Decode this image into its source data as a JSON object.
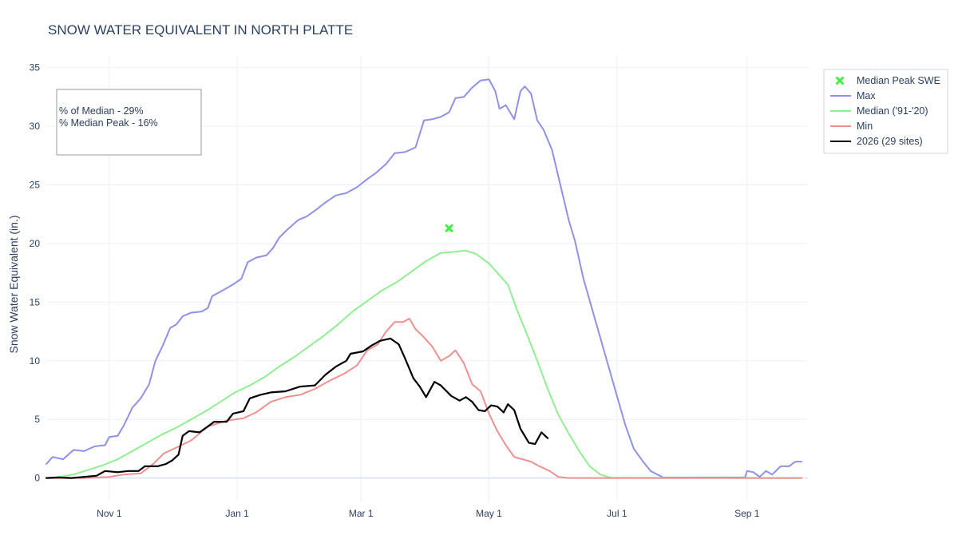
{
  "chart_data": {
    "type": "line",
    "title": "SNOW WATER EQUIVALENT IN NORTH PLATTE",
    "ylabel": "Snow Water Equivalent (in.)",
    "xlabel": "",
    "ylim": [
      -2,
      36
    ],
    "xlim": [
      "2025-10-02",
      "2026-09-30"
    ],
    "y_ticks": [
      0,
      5,
      10,
      15,
      20,
      25,
      30,
      35
    ],
    "x_ticks": [
      {
        "date": "2025-11-01",
        "label": "Nov 1"
      },
      {
        "date": "2026-01-01",
        "label": "Jan 1"
      },
      {
        "date": "2026-03-01",
        "label": "Mar 1"
      },
      {
        "date": "2026-05-01",
        "label": "May 1"
      },
      {
        "date": "2026-07-01",
        "label": "Jul 1"
      },
      {
        "date": "2026-09-01",
        "label": "Sep 1"
      }
    ],
    "grid": true,
    "legend_position": "top-right",
    "annotation": [
      "% of Median - 29%",
      "% Median Peak - 16%"
    ],
    "series": [
      {
        "name": "Max",
        "color": "#9090e8",
        "points": [
          [
            "2025-10-02",
            1.2
          ],
          [
            "2025-10-05",
            1.8
          ],
          [
            "2025-10-10",
            1.6
          ],
          [
            "2025-10-15",
            2.4
          ],
          [
            "2025-10-20",
            2.3
          ],
          [
            "2025-10-25",
            2.7
          ],
          [
            "2025-10-30",
            2.8
          ],
          [
            "2025-11-01",
            3.5
          ],
          [
            "2025-11-05",
            3.6
          ],
          [
            "2025-11-08",
            4.5
          ],
          [
            "2025-11-12",
            6.0
          ],
          [
            "2025-11-16",
            6.8
          ],
          [
            "2025-11-20",
            8.0
          ],
          [
            "2025-11-23",
            10.0
          ],
          [
            "2025-11-27",
            11.5
          ],
          [
            "2025-11-30",
            12.8
          ],
          [
            "2025-12-03",
            13.1
          ],
          [
            "2025-12-06",
            13.8
          ],
          [
            "2025-12-10",
            14.1
          ],
          [
            "2025-12-15",
            14.2
          ],
          [
            "2025-12-18",
            14.5
          ],
          [
            "2025-12-20",
            15.5
          ],
          [
            "2025-12-25",
            16.0
          ],
          [
            "2025-12-30",
            16.5
          ],
          [
            "2026-01-03",
            17.0
          ],
          [
            "2026-01-06",
            18.4
          ],
          [
            "2026-01-10",
            18.8
          ],
          [
            "2026-01-15",
            19.0
          ],
          [
            "2026-01-18",
            19.6
          ],
          [
            "2026-01-21",
            20.5
          ],
          [
            "2026-01-25",
            21.2
          ],
          [
            "2026-01-30",
            22.0
          ],
          [
            "2026-02-03",
            22.3
          ],
          [
            "2026-02-07",
            22.8
          ],
          [
            "2026-02-12",
            23.5
          ],
          [
            "2026-02-17",
            24.1
          ],
          [
            "2026-02-22",
            24.3
          ],
          [
            "2026-02-27",
            24.8
          ],
          [
            "2026-03-04",
            25.5
          ],
          [
            "2026-03-08",
            26.0
          ],
          [
            "2026-03-13",
            26.8
          ],
          [
            "2026-03-17",
            27.7
          ],
          [
            "2026-03-22",
            27.8
          ],
          [
            "2026-03-27",
            28.2
          ],
          [
            "2026-03-31",
            30.5
          ],
          [
            "2026-04-04",
            30.6
          ],
          [
            "2026-04-08",
            30.8
          ],
          [
            "2026-04-12",
            31.2
          ],
          [
            "2026-04-15",
            32.4
          ],
          [
            "2026-04-19",
            32.5
          ],
          [
            "2026-04-23",
            33.3
          ],
          [
            "2026-04-27",
            33.9
          ],
          [
            "2026-05-01",
            34.0
          ],
          [
            "2026-05-04",
            33.0
          ],
          [
            "2026-05-06",
            31.5
          ],
          [
            "2026-05-09",
            31.8
          ],
          [
            "2026-05-13",
            30.6
          ],
          [
            "2026-05-16",
            33.0
          ],
          [
            "2026-05-18",
            33.4
          ],
          [
            "2026-05-21",
            32.8
          ],
          [
            "2026-05-24",
            30.5
          ],
          [
            "2026-05-27",
            29.7
          ],
          [
            "2026-05-31",
            28.0
          ],
          [
            "2026-06-04",
            25.0
          ],
          [
            "2026-06-08",
            22.0
          ],
          [
            "2026-06-11",
            20.2
          ],
          [
            "2026-06-15",
            17.0
          ],
          [
            "2026-06-19",
            14.5
          ],
          [
            "2026-06-23",
            12.0
          ],
          [
            "2026-06-27",
            9.5
          ],
          [
            "2026-07-01",
            7.0
          ],
          [
            "2026-07-05",
            4.5
          ],
          [
            "2026-07-09",
            2.5
          ],
          [
            "2026-07-13",
            1.5
          ],
          [
            "2026-07-17",
            0.6
          ],
          [
            "2026-07-23",
            0.05
          ],
          [
            "2026-08-31",
            0.05
          ],
          [
            "2026-09-01",
            0.6
          ],
          [
            "2026-09-04",
            0.5
          ],
          [
            "2026-09-07",
            0.1
          ],
          [
            "2026-09-10",
            0.6
          ],
          [
            "2026-09-13",
            0.3
          ],
          [
            "2026-09-17",
            1.0
          ],
          [
            "2026-09-21",
            1.0
          ],
          [
            "2026-09-24",
            1.4
          ],
          [
            "2026-09-27",
            1.4
          ]
        ]
      },
      {
        "name": "Median ('91-'20)",
        "color": "#90ee90",
        "points": [
          [
            "2025-10-02",
            0.0
          ],
          [
            "2025-10-08",
            0.1
          ],
          [
            "2025-10-15",
            0.3
          ],
          [
            "2025-10-22",
            0.7
          ],
          [
            "2025-10-29",
            1.1
          ],
          [
            "2025-11-05",
            1.6
          ],
          [
            "2025-11-12",
            2.3
          ],
          [
            "2025-11-19",
            3.0
          ],
          [
            "2025-11-26",
            3.7
          ],
          [
            "2025-12-03",
            4.3
          ],
          [
            "2025-12-10",
            5.0
          ],
          [
            "2025-12-17",
            5.7
          ],
          [
            "2025-12-24",
            6.5
          ],
          [
            "2025-12-31",
            7.3
          ],
          [
            "2026-01-07",
            7.9
          ],
          [
            "2026-01-14",
            8.6
          ],
          [
            "2026-01-21",
            9.5
          ],
          [
            "2026-01-28",
            10.3
          ],
          [
            "2026-02-04",
            11.2
          ],
          [
            "2026-02-11",
            12.1
          ],
          [
            "2026-02-18",
            13.1
          ],
          [
            "2026-02-25",
            14.2
          ],
          [
            "2026-03-04",
            15.1
          ],
          [
            "2026-03-11",
            16.0
          ],
          [
            "2026-03-18",
            16.7
          ],
          [
            "2026-03-25",
            17.6
          ],
          [
            "2026-04-01",
            18.5
          ],
          [
            "2026-04-08",
            19.2
          ],
          [
            "2026-04-15",
            19.3
          ],
          [
            "2026-04-20",
            19.4
          ],
          [
            "2026-04-25",
            19.1
          ],
          [
            "2026-05-01",
            18.3
          ],
          [
            "2026-05-05",
            17.5
          ],
          [
            "2026-05-10",
            16.5
          ],
          [
            "2026-05-14",
            14.5
          ],
          [
            "2026-05-19",
            12.3
          ],
          [
            "2026-05-24",
            10.0
          ],
          [
            "2026-05-29",
            7.6
          ],
          [
            "2026-06-03",
            5.4
          ],
          [
            "2026-06-08",
            3.8
          ],
          [
            "2026-06-13",
            2.3
          ],
          [
            "2026-06-18",
            1.0
          ],
          [
            "2026-06-23",
            0.3
          ],
          [
            "2026-06-28",
            0.02
          ],
          [
            "2026-09-27",
            0.0
          ]
        ]
      },
      {
        "name": "Min",
        "color": "#ee9090",
        "points": [
          [
            "2025-10-02",
            0.0
          ],
          [
            "2025-10-20",
            0.0
          ],
          [
            "2025-11-01",
            0.1
          ],
          [
            "2025-11-08",
            0.3
          ],
          [
            "2025-11-16",
            0.4
          ],
          [
            "2025-11-22",
            1.2
          ],
          [
            "2025-11-27",
            2.1
          ],
          [
            "2025-12-03",
            2.6
          ],
          [
            "2025-12-10",
            3.2
          ],
          [
            "2025-12-18",
            4.4
          ],
          [
            "2025-12-27",
            4.9
          ],
          [
            "2026-01-04",
            5.1
          ],
          [
            "2026-01-10",
            5.6
          ],
          [
            "2026-01-17",
            6.5
          ],
          [
            "2026-01-24",
            6.9
          ],
          [
            "2026-01-31",
            7.1
          ],
          [
            "2026-02-07",
            7.6
          ],
          [
            "2026-02-14",
            8.3
          ],
          [
            "2026-02-21",
            8.9
          ],
          [
            "2026-02-27",
            9.6
          ],
          [
            "2026-03-04",
            10.9
          ],
          [
            "2026-03-09",
            11.4
          ],
          [
            "2026-03-13",
            12.5
          ],
          [
            "2026-03-17",
            13.3
          ],
          [
            "2026-03-21",
            13.3
          ],
          [
            "2026-03-24",
            13.6
          ],
          [
            "2026-03-27",
            12.7
          ],
          [
            "2026-03-31",
            12.0
          ],
          [
            "2026-04-04",
            11.2
          ],
          [
            "2026-04-08",
            10.0
          ],
          [
            "2026-04-12",
            10.4
          ],
          [
            "2026-04-15",
            10.9
          ],
          [
            "2026-04-19",
            9.8
          ],
          [
            "2026-04-23",
            8.0
          ],
          [
            "2026-04-27",
            7.4
          ],
          [
            "2026-05-01",
            5.5
          ],
          [
            "2026-05-05",
            4.0
          ],
          [
            "2026-05-09",
            2.8
          ],
          [
            "2026-05-13",
            1.8
          ],
          [
            "2026-05-17",
            1.6
          ],
          [
            "2026-05-21",
            1.4
          ],
          [
            "2026-05-25",
            1.0
          ],
          [
            "2026-05-30",
            0.6
          ],
          [
            "2026-06-03",
            0.1
          ],
          [
            "2026-06-08",
            0.0
          ],
          [
            "2026-09-27",
            0.0
          ]
        ]
      },
      {
        "name": "2026 (29 sites)",
        "color": "#000000",
        "points": [
          [
            "2025-10-02",
            0.0
          ],
          [
            "2025-10-08",
            0.05
          ],
          [
            "2025-10-14",
            0.0
          ],
          [
            "2025-10-20",
            0.1
          ],
          [
            "2025-10-26",
            0.2
          ],
          [
            "2025-10-30",
            0.6
          ],
          [
            "2025-11-05",
            0.5
          ],
          [
            "2025-11-10",
            0.6
          ],
          [
            "2025-11-15",
            0.6
          ],
          [
            "2025-11-18",
            1.0
          ],
          [
            "2025-11-24",
            1.0
          ],
          [
            "2025-11-28",
            1.2
          ],
          [
            "2025-12-01",
            1.5
          ],
          [
            "2025-12-04",
            2.0
          ],
          [
            "2025-12-06",
            3.6
          ],
          [
            "2025-12-09",
            4.0
          ],
          [
            "2025-12-14",
            3.9
          ],
          [
            "2025-12-18",
            4.4
          ],
          [
            "2025-12-21",
            4.8
          ],
          [
            "2025-12-27",
            4.8
          ],
          [
            "2025-12-30",
            5.5
          ],
          [
            "2026-01-04",
            5.7
          ],
          [
            "2026-01-07",
            6.8
          ],
          [
            "2026-01-12",
            7.1
          ],
          [
            "2026-01-17",
            7.3
          ],
          [
            "2026-01-24",
            7.4
          ],
          [
            "2026-01-31",
            7.8
          ],
          [
            "2026-02-07",
            7.9
          ],
          [
            "2026-02-12",
            8.8
          ],
          [
            "2026-02-17",
            9.5
          ],
          [
            "2026-02-22",
            10.0
          ],
          [
            "2026-02-24",
            10.6
          ],
          [
            "2026-03-02",
            10.8
          ],
          [
            "2026-03-06",
            11.3
          ],
          [
            "2026-03-10",
            11.7
          ],
          [
            "2026-03-15",
            11.9
          ],
          [
            "2026-03-19",
            11.4
          ],
          [
            "2026-03-22",
            10.2
          ],
          [
            "2026-03-26",
            8.5
          ],
          [
            "2026-03-29",
            7.8
          ],
          [
            "2026-04-01",
            6.9
          ],
          [
            "2026-04-05",
            8.2
          ],
          [
            "2026-04-08",
            7.9
          ],
          [
            "2026-04-13",
            7.0
          ],
          [
            "2026-04-17",
            6.6
          ],
          [
            "2026-04-20",
            6.9
          ],
          [
            "2026-04-23",
            6.5
          ],
          [
            "2026-04-26",
            5.8
          ],
          [
            "2026-04-29",
            5.7
          ],
          [
            "2026-05-02",
            6.2
          ],
          [
            "2026-05-05",
            6.1
          ],
          [
            "2026-05-08",
            5.6
          ],
          [
            "2026-05-10",
            6.3
          ],
          [
            "2026-05-13",
            5.8
          ],
          [
            "2026-05-16",
            4.2
          ],
          [
            "2026-05-20",
            3.0
          ],
          [
            "2026-05-23",
            2.9
          ],
          [
            "2026-05-26",
            3.9
          ],
          [
            "2026-05-29",
            3.4
          ]
        ]
      }
    ],
    "markers": [
      {
        "name": "Median Peak SWE",
        "color": "#44ee44",
        "x": "2026-04-12",
        "y": 21.3,
        "symbol": "x"
      }
    ]
  }
}
